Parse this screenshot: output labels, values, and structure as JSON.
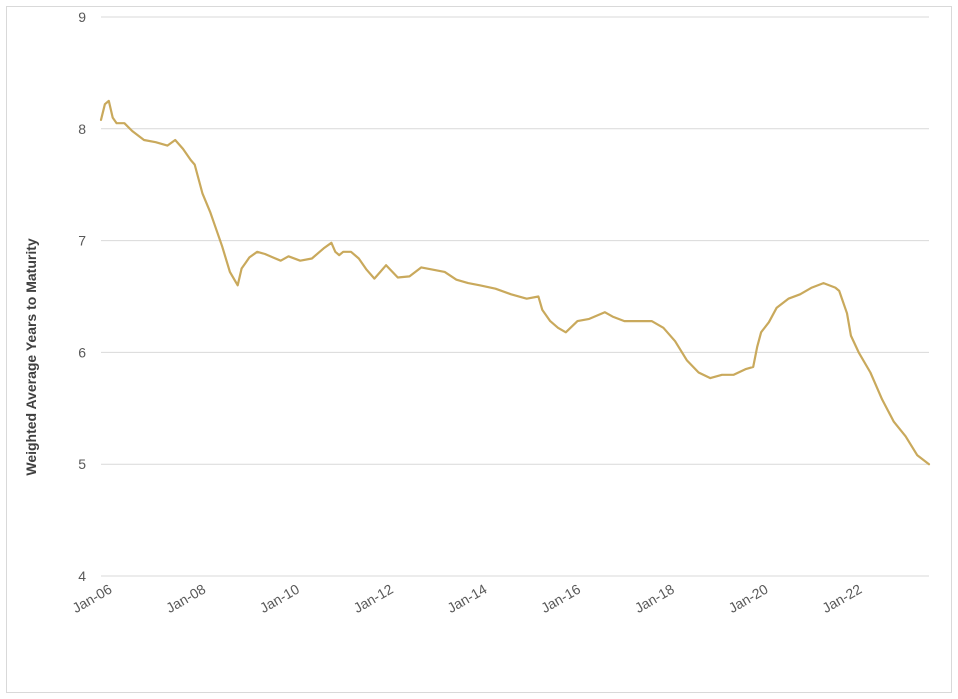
{
  "chart_data": {
    "type": "line",
    "title": "",
    "xlabel": "",
    "ylabel": "Weighted Average Years to Maturity",
    "ylim": [
      4,
      9
    ],
    "yticks": [
      4,
      5,
      6,
      7,
      8,
      9
    ],
    "xlim": [
      "2006-01",
      "2023-09"
    ],
    "xtick_labels": [
      "Jan-06",
      "Jan-08",
      "Jan-10",
      "Jan-12",
      "Jan-14",
      "Jan-16",
      "Jan-18",
      "Jan-20",
      "Jan-22"
    ],
    "grid": true,
    "legend": "none",
    "line_color": "#C9A95C",
    "series": [
      {
        "x": [
          "2006-01",
          "2006-02",
          "2006-03",
          "2006-04",
          "2006-05",
          "2006-07",
          "2006-09",
          "2006-12",
          "2007-03",
          "2007-06",
          "2007-08",
          "2007-10",
          "2007-12",
          "2008-01",
          "2008-02",
          "2008-03",
          "2008-05",
          "2008-06",
          "2008-08",
          "2008-10",
          "2008-12",
          "2009-01",
          "2009-02",
          "2009-03",
          "2009-05",
          "2009-07",
          "2009-09",
          "2009-11",
          "2010-01",
          "2010-04",
          "2010-07",
          "2010-10",
          "2010-12",
          "2011-01",
          "2011-02",
          "2011-03",
          "2011-05",
          "2011-07",
          "2011-09",
          "2011-11",
          "2012-02",
          "2012-05",
          "2012-08",
          "2012-11",
          "2013-02",
          "2013-05",
          "2013-08",
          "2013-11",
          "2014-02",
          "2014-06",
          "2014-10",
          "2015-02",
          "2015-05",
          "2015-06",
          "2015-08",
          "2015-10",
          "2015-12",
          "2016-03",
          "2016-06",
          "2016-10",
          "2016-12",
          "2017-03",
          "2017-07",
          "2017-10",
          "2018-01",
          "2018-04",
          "2018-07",
          "2018-10",
          "2019-01",
          "2019-04",
          "2019-07",
          "2019-10",
          "2019-12",
          "2020-01",
          "2020-02",
          "2020-04",
          "2020-06",
          "2020-09",
          "2020-12",
          "2021-03",
          "2021-06",
          "2021-09",
          "2021-10",
          "2021-12",
          "2022-01",
          "2022-03",
          "2022-06",
          "2022-09",
          "2022-12",
          "2023-03",
          "2023-06",
          "2023-09"
        ],
        "y": [
          8.08,
          8.22,
          8.25,
          8.1,
          8.05,
          8.05,
          7.98,
          7.9,
          7.88,
          7.85,
          7.9,
          7.82,
          7.72,
          7.68,
          7.55,
          7.42,
          7.25,
          7.15,
          6.95,
          6.72,
          6.6,
          6.75,
          6.8,
          6.85,
          6.9,
          6.88,
          6.85,
          6.82,
          6.86,
          6.82,
          6.84,
          6.93,
          6.98,
          6.9,
          6.87,
          6.9,
          6.9,
          6.84,
          6.74,
          6.66,
          6.78,
          6.67,
          6.68,
          6.76,
          6.74,
          6.72,
          6.65,
          6.62,
          6.6,
          6.57,
          6.52,
          6.48,
          6.5,
          6.38,
          6.28,
          6.22,
          6.18,
          6.28,
          6.3,
          6.36,
          6.32,
          6.28,
          6.28,
          6.28,
          6.22,
          6.1,
          5.93,
          5.82,
          5.77,
          5.8,
          5.8,
          5.85,
          5.87,
          6.05,
          6.18,
          6.27,
          6.4,
          6.48,
          6.52,
          6.58,
          6.62,
          6.58,
          6.55,
          6.35,
          6.15,
          6.0,
          5.82,
          5.58,
          5.38,
          5.25,
          5.08,
          5.0
        ]
      }
    ]
  }
}
